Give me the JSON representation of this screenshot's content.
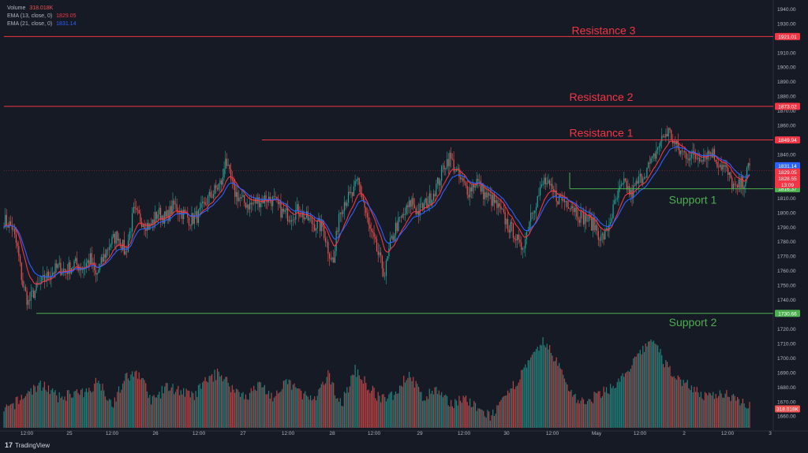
{
  "legend": {
    "volume_label": "Volume",
    "volume_value": "318.018K",
    "ema13_label": "EMA (13, close, 0)",
    "ema13_value": "1829.05",
    "ema21_label": "EMA (21, close, 0)",
    "ema21_value": "1831.14"
  },
  "brand": {
    "logo": "17",
    "name": "TradingView"
  },
  "colors": {
    "up": "#26a69a",
    "down": "#ef5350",
    "resistance": "#f23645",
    "support": "#4caf50",
    "ema13": "#f23645",
    "ema21": "#2962ff"
  },
  "chart_data": {
    "type": "candlestick",
    "ylim": [
      1652,
      1944
    ],
    "y_ticks": [
      1660,
      1670,
      1680,
      1690,
      1700,
      1710,
      1720,
      1730,
      1740,
      1750,
      1760,
      1770,
      1780,
      1790,
      1800,
      1810,
      1820,
      1830,
      1840,
      1850,
      1860,
      1870,
      1880,
      1890,
      1900,
      1910,
      1920,
      1930,
      1940
    ],
    "x_ticks": [
      "12:00",
      "25",
      "12:00",
      "26",
      "12:00",
      "27",
      "12:00",
      "28",
      "12:00",
      "29",
      "12:00",
      "30",
      "12:00",
      "May",
      "12:00",
      "2",
      "12:00",
      "3"
    ],
    "levels": [
      {
        "label": "Resistance 3",
        "price": 1921.01,
        "tag": "1921.01",
        "kind": "resistance"
      },
      {
        "label": "Resistance 2",
        "price": 1873.02,
        "tag": "1873.02",
        "kind": "resistance"
      },
      {
        "label": "Resistance 1",
        "price": 1849.94,
        "tag": "1849.94",
        "kind": "resistance"
      },
      {
        "label": "Support 1",
        "price": 1816.37,
        "tag": "1816.37",
        "kind": "support"
      },
      {
        "label": "Support 2",
        "price": 1730.66,
        "tag": "1730.66",
        "kind": "support"
      }
    ],
    "price_tags": [
      {
        "price": 1831.14,
        "text": "1831.14",
        "color": "#2962ff"
      },
      {
        "price": 1829.05,
        "text": "1829.05",
        "color": "#f23645"
      },
      {
        "price": 1828.55,
        "text": "1828.55",
        "color": "#f23645"
      },
      {
        "price": 1822.5,
        "text": "13:09",
        "color": "#f23645"
      }
    ],
    "volume_tag": "318.018K",
    "close_path": [
      [
        0,
        1795
      ],
      [
        6,
        1790
      ],
      [
        10,
        1775
      ],
      [
        14,
        1750
      ],
      [
        18,
        1738
      ],
      [
        22,
        1745
      ],
      [
        28,
        1752
      ],
      [
        34,
        1758
      ],
      [
        40,
        1762
      ],
      [
        46,
        1760
      ],
      [
        52,
        1765
      ],
      [
        58,
        1762
      ],
      [
        64,
        1768
      ],
      [
        68,
        1756
      ],
      [
        72,
        1765
      ],
      [
        78,
        1778
      ],
      [
        84,
        1785
      ],
      [
        90,
        1772
      ],
      [
        96,
        1800
      ],
      [
        102,
        1795
      ],
      [
        108,
        1790
      ],
      [
        114,
        1800
      ],
      [
        120,
        1796
      ],
      [
        126,
        1805
      ],
      [
        132,
        1800
      ],
      [
        138,
        1795
      ],
      [
        144,
        1798
      ],
      [
        150,
        1808
      ],
      [
        156,
        1815
      ],
      [
        162,
        1822
      ],
      [
        164,
        1840
      ],
      [
        166,
        1828
      ],
      [
        170,
        1815
      ],
      [
        176,
        1808
      ],
      [
        182,
        1805
      ],
      [
        188,
        1808
      ],
      [
        194,
        1810
      ],
      [
        200,
        1808
      ],
      [
        206,
        1800
      ],
      [
        212,
        1798
      ],
      [
        218,
        1802
      ],
      [
        224,
        1796
      ],
      [
        230,
        1792
      ],
      [
        236,
        1790
      ],
      [
        240,
        1775
      ],
      [
        244,
        1765
      ],
      [
        248,
        1800
      ],
      [
        252,
        1808
      ],
      [
        258,
        1812
      ],
      [
        262,
        1822
      ],
      [
        266,
        1808
      ],
      [
        270,
        1790
      ],
      [
        274,
        1780
      ],
      [
        278,
        1768
      ],
      [
        282,
        1758
      ],
      [
        286,
        1778
      ],
      [
        290,
        1790
      ],
      [
        296,
        1798
      ],
      [
        302,
        1808
      ],
      [
        306,
        1800
      ],
      [
        310,
        1804
      ],
      [
        316,
        1810
      ],
      [
        322,
        1822
      ],
      [
        326,
        1833
      ],
      [
        330,
        1838
      ],
      [
        334,
        1830
      ],
      [
        338,
        1822
      ],
      [
        344,
        1815
      ],
      [
        350,
        1822
      ],
      [
        356,
        1812
      ],
      [
        362,
        1808
      ],
      [
        368,
        1800
      ],
      [
        374,
        1790
      ],
      [
        378,
        1786
      ],
      [
        382,
        1775
      ],
      [
        386,
        1782
      ],
      [
        390,
        1800
      ],
      [
        396,
        1812
      ],
      [
        400,
        1822
      ],
      [
        404,
        1816
      ],
      [
        410,
        1810
      ],
      [
        416,
        1808
      ],
      [
        420,
        1806
      ],
      [
        426,
        1798
      ],
      [
        432,
        1795
      ],
      [
        438,
        1790
      ],
      [
        442,
        1782
      ],
      [
        446,
        1786
      ],
      [
        452,
        1805
      ],
      [
        456,
        1815
      ],
      [
        460,
        1820
      ],
      [
        464,
        1812
      ],
      [
        470,
        1822
      ],
      [
        476,
        1830
      ],
      [
        480,
        1835
      ],
      [
        484,
        1845
      ],
      [
        488,
        1852
      ],
      [
        492,
        1856
      ],
      [
        496,
        1848
      ],
      [
        500,
        1842
      ],
      [
        506,
        1840
      ],
      [
        512,
        1838
      ],
      [
        518,
        1840
      ],
      [
        524,
        1842
      ],
      [
        528,
        1835
      ],
      [
        534,
        1830
      ],
      [
        538,
        1822
      ],
      [
        542,
        1815
      ],
      [
        544,
        1818
      ],
      [
        548,
        1822
      ],
      [
        551,
        1830
      ]
    ],
    "volume_profile": [
      [
        0,
        1663
      ],
      [
        10,
        1670
      ],
      [
        20,
        1678
      ],
      [
        30,
        1682
      ],
      [
        40,
        1672
      ],
      [
        50,
        1676
      ],
      [
        60,
        1675
      ],
      [
        70,
        1685
      ],
      [
        80,
        1668
      ],
      [
        90,
        1686
      ],
      [
        100,
        1690
      ],
      [
        110,
        1670
      ],
      [
        120,
        1680
      ],
      [
        130,
        1678
      ],
      [
        140,
        1673
      ],
      [
        150,
        1685
      ],
      [
        160,
        1690
      ],
      [
        170,
        1678
      ],
      [
        180,
        1674
      ],
      [
        190,
        1682
      ],
      [
        200,
        1672
      ],
      [
        210,
        1684
      ],
      [
        220,
        1676
      ],
      [
        230,
        1670
      ],
      [
        240,
        1688
      ],
      [
        250,
        1668
      ],
      [
        260,
        1692
      ],
      [
        270,
        1680
      ],
      [
        280,
        1671
      ],
      [
        290,
        1676
      ],
      [
        300,
        1690
      ],
      [
        310,
        1672
      ],
      [
        320,
        1678
      ],
      [
        330,
        1668
      ],
      [
        340,
        1673
      ],
      [
        350,
        1665
      ],
      [
        360,
        1660
      ],
      [
        370,
        1670
      ],
      [
        380,
        1685
      ],
      [
        390,
        1698
      ],
      [
        400,
        1712
      ],
      [
        410,
        1696
      ],
      [
        420,
        1676
      ],
      [
        430,
        1668
      ],
      [
        440,
        1675
      ],
      [
        450,
        1680
      ],
      [
        460,
        1688
      ],
      [
        470,
        1702
      ],
      [
        480,
        1714
      ],
      [
        490,
        1695
      ],
      [
        500,
        1685
      ],
      [
        510,
        1680
      ],
      [
        520,
        1672
      ],
      [
        530,
        1676
      ],
      [
        540,
        1674
      ],
      [
        551,
        1668
      ]
    ]
  }
}
